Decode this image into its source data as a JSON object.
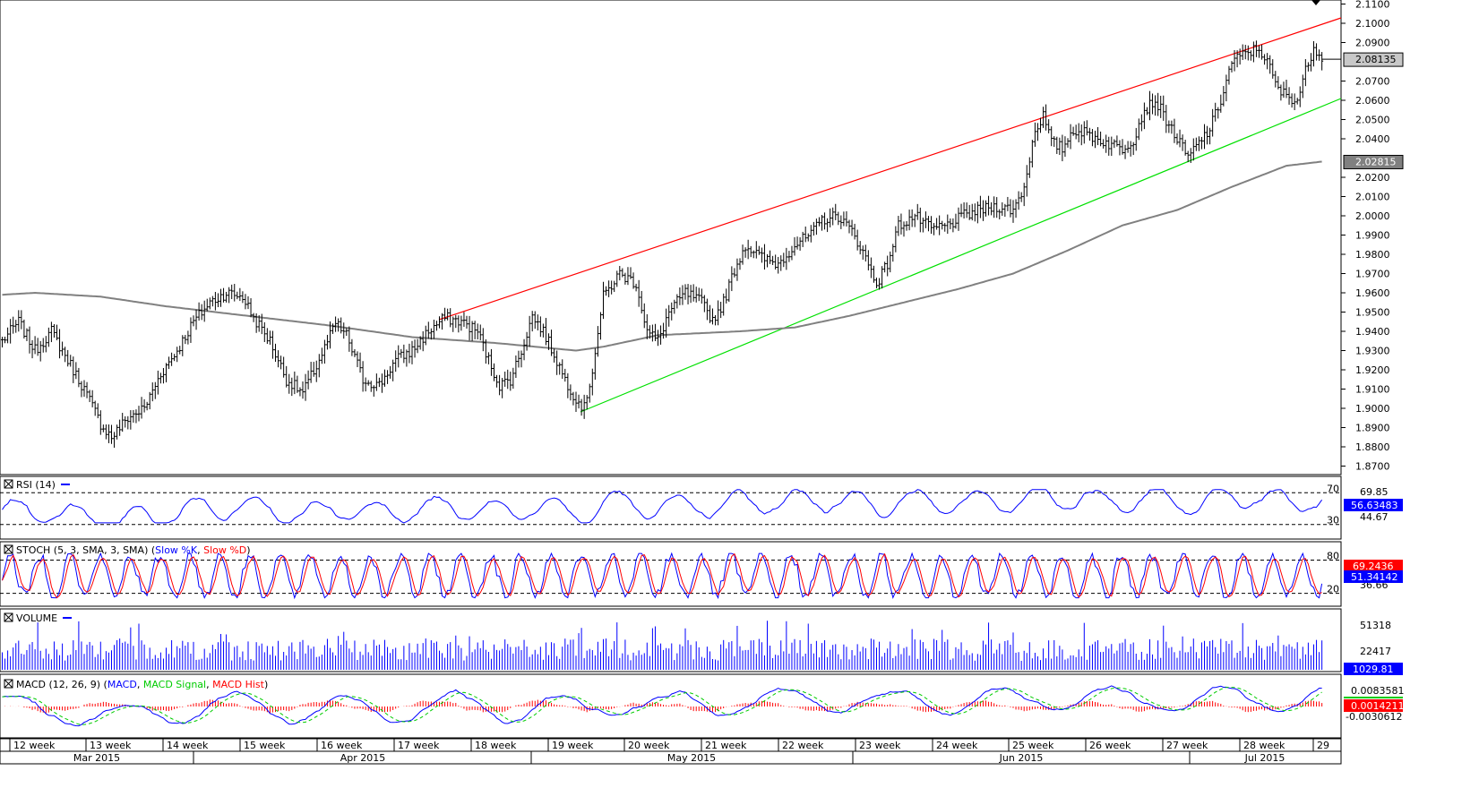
{
  "chart_data": {
    "type": "ohlc",
    "price_axis": {
      "ticks": [
        "2.1100",
        "2.1000",
        "2.0900",
        "2.0700",
        "2.0600",
        "2.0500",
        "2.0400",
        "2.0200",
        "2.0100",
        "2.0000",
        "1.9900",
        "1.9800",
        "1.9700",
        "1.9600",
        "1.9500",
        "1.9400",
        "1.9300",
        "1.9200",
        "1.9100",
        "1.9000",
        "1.8900",
        "1.8800",
        "1.8700"
      ],
      "last_price": "2.08135",
      "ma_value": "2.02815"
    },
    "price_series": {
      "anchors": [
        [
          0,
          1.935
        ],
        [
          6,
          1.945
        ],
        [
          12,
          1.93
        ],
        [
          18,
          1.94
        ],
        [
          24,
          1.925
        ],
        [
          30,
          1.91
        ],
        [
          36,
          1.892
        ],
        [
          40,
          1.885
        ],
        [
          46,
          1.895
        ],
        [
          52,
          1.9
        ],
        [
          58,
          1.918
        ],
        [
          64,
          1.93
        ],
        [
          70,
          1.945
        ],
        [
          76,
          1.955
        ],
        [
          82,
          1.96
        ],
        [
          88,
          1.958
        ],
        [
          92,
          1.947
        ],
        [
          98,
          1.935
        ],
        [
          104,
          1.915
        ],
        [
          110,
          1.908
        ],
        [
          116,
          1.925
        ],
        [
          122,
          1.944
        ],
        [
          126,
          1.938
        ],
        [
          132,
          1.915
        ],
        [
          138,
          1.912
        ],
        [
          144,
          1.925
        ],
        [
          150,
          1.93
        ],
        [
          156,
          1.94
        ],
        [
          162,
          1.947
        ],
        [
          168,
          1.945
        ],
        [
          174,
          1.94
        ],
        [
          178,
          1.925
        ],
        [
          182,
          1.912
        ],
        [
          186,
          1.915
        ],
        [
          190,
          1.93
        ],
        [
          194,
          1.948
        ],
        [
          198,
          1.94
        ],
        [
          202,
          1.928
        ],
        [
          206,
          1.915
        ],
        [
          210,
          1.905
        ],
        [
          213,
          1.9
        ],
        [
          216,
          1.92
        ],
        [
          220,
          1.958
        ],
        [
          226,
          1.97
        ],
        [
          232,
          1.965
        ],
        [
          236,
          1.94
        ],
        [
          240,
          1.935
        ],
        [
          244,
          1.95
        ],
        [
          250,
          1.96
        ],
        [
          256,
          1.955
        ],
        [
          260,
          1.946
        ],
        [
          264,
          1.955
        ],
        [
          268,
          1.972
        ],
        [
          272,
          1.985
        ],
        [
          278,
          1.978
        ],
        [
          284,
          1.975
        ],
        [
          290,
          1.985
        ],
        [
          296,
          1.99
        ],
        [
          300,
          1.998
        ],
        [
          306,
          2.0
        ],
        [
          312,
          1.99
        ],
        [
          316,
          1.978
        ],
        [
          320,
          1.965
        ],
        [
          324,
          1.975
        ],
        [
          328,
          1.995
        ],
        [
          334,
          2.0
        ],
        [
          340,
          1.993
        ],
        [
          346,
          1.995
        ],
        [
          352,
          2.0
        ],
        [
          358,
          2.003
        ],
        [
          364,
          2.005
        ],
        [
          370,
          2.003
        ],
        [
          374,
          2.015
        ],
        [
          378,
          2.045
        ],
        [
          381,
          2.052
        ],
        [
          384,
          2.038
        ],
        [
          388,
          2.035
        ],
        [
          392,
          2.045
        ],
        [
          398,
          2.042
        ],
        [
          404,
          2.038
        ],
        [
          410,
          2.035
        ],
        [
          414,
          2.04
        ],
        [
          418,
          2.055
        ],
        [
          422,
          2.06
        ],
        [
          426,
          2.05
        ],
        [
          430,
          2.04
        ],
        [
          434,
          2.03
        ],
        [
          438,
          2.038
        ],
        [
          442,
          2.045
        ],
        [
          446,
          2.06
        ],
        [
          450,
          2.08
        ],
        [
          456,
          2.085
        ],
        [
          460,
          2.087
        ],
        [
          463,
          2.08
        ],
        [
          467,
          2.065
        ],
        [
          471,
          2.062
        ],
        [
          474,
          2.06
        ],
        [
          477,
          2.075
        ],
        [
          480,
          2.088
        ],
        [
          483,
          2.083
        ]
      ],
      "ma_anchors": [
        [
          0,
          1.959
        ],
        [
          12,
          1.96
        ],
        [
          36,
          1.958
        ],
        [
          60,
          1.953
        ],
        [
          90,
          1.948
        ],
        [
          120,
          1.943
        ],
        [
          150,
          1.937
        ],
        [
          180,
          1.934
        ],
        [
          210,
          1.93
        ],
        [
          220,
          1.932
        ],
        [
          240,
          1.938
        ],
        [
          270,
          1.94
        ],
        [
          290,
          1.942
        ],
        [
          310,
          1.948
        ],
        [
          330,
          1.955
        ],
        [
          350,
          1.962
        ],
        [
          370,
          1.97
        ],
        [
          390,
          1.982
        ],
        [
          410,
          1.995
        ],
        [
          430,
          2.003
        ],
        [
          450,
          2.015
        ],
        [
          470,
          2.026
        ],
        [
          483,
          2.02815
        ]
      ]
    },
    "week_labels": [
      "12 week",
      "13 week",
      "14 week",
      "15 week",
      "16 week",
      "17 week",
      "18 week",
      "19 week",
      "20 week",
      "21 week",
      "22 week",
      "23 week",
      "24 week",
      "25 week",
      "26 week",
      "27 week",
      "28 week",
      "29"
    ],
    "month_labels": [
      "Mar 2015",
      "Apr 2015",
      "May 2015",
      "Jun 2015",
      "Jul 2015"
    ],
    "panels": {
      "rsi": {
        "title": "RSI (14)",
        "levels": [
          "70",
          "30"
        ],
        "axis_ticks": [
          "69.85",
          "44.67"
        ],
        "value": "56.63483"
      },
      "stoch": {
        "title": "STOCH (5, 3, SMA, 3, SMA)",
        "legend": [
          "Slow %K",
          "Slow %D"
        ],
        "levels": [
          "80",
          "20"
        ],
        "axis_ticks": [
          "36.66"
        ],
        "value_k": "69.2436",
        "value_d": "51.34142"
      },
      "volume": {
        "title": "VOLUME",
        "axis_ticks": [
          "51318",
          "22417"
        ],
        "value": "1029.81"
      },
      "macd": {
        "title": "MACD (12, 26, 9)",
        "legend": [
          "MACD",
          "MACD Signal",
          "MACD Hist"
        ],
        "axis_ticks": [
          "0.0083581",
          "-0.0030612"
        ],
        "value": "0.0014211"
      }
    },
    "colors": {
      "bar": "#000000",
      "ma": "#808080",
      "resistance": "#ff0000",
      "support": "#00e000",
      "rsi": "#0000ff",
      "stoch_k": "#0000ff",
      "stoch_d": "#ff0000",
      "volume": "#0000ff",
      "macd": "#0000ff",
      "macd_signal": "#00cc00",
      "macd_hist": "#ff0000"
    }
  }
}
